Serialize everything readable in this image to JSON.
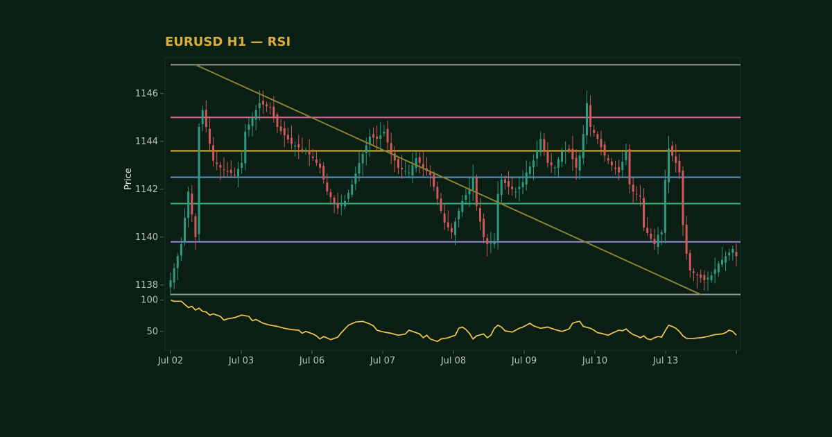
{
  "chart_data": [
    {
      "type": "candlestick",
      "title": "EURUSD H1 — RSI",
      "ylabel": "Price",
      "ylim": [
        1137.5,
        1147.5
      ],
      "y_ticks": [
        1138,
        1140,
        1142,
        1144,
        1146
      ],
      "x_ticks": [
        "Jul 02",
        "Jul 03",
        "Jul 06",
        "Jul 07",
        "Jul 08",
        "Jul 09",
        "Jul 10",
        "Jul 13"
      ],
      "candle_count": 160,
      "anchors": [
        [
          0,
          1138.2
        ],
        [
          3,
          1139.7
        ],
        [
          5,
          1141.9
        ],
        [
          7,
          1140.0
        ],
        [
          8,
          1144.6
        ],
        [
          9,
          1145.3
        ],
        [
          12,
          1143.2
        ],
        [
          14,
          1142.9
        ],
        [
          18,
          1142.6
        ],
        [
          20,
          1143.1
        ],
        [
          21,
          1144.4
        ],
        [
          25,
          1145.6
        ],
        [
          28,
          1145.4
        ],
        [
          30,
          1144.6
        ],
        [
          34,
          1143.9
        ],
        [
          38,
          1143.6
        ],
        [
          40,
          1143.3
        ],
        [
          42,
          1142.9
        ],
        [
          44,
          1141.9
        ],
        [
          47,
          1141.2
        ],
        [
          49,
          1141.5
        ],
        [
          51,
          1142.2
        ],
        [
          53,
          1143.1
        ],
        [
          56,
          1144.2
        ],
        [
          58,
          1144.1
        ],
        [
          60,
          1144.4
        ],
        [
          62,
          1143.5
        ],
        [
          64,
          1142.9
        ],
        [
          67,
          1142.7
        ],
        [
          69,
          1143.3
        ],
        [
          71,
          1142.9
        ],
        [
          73,
          1142.6
        ],
        [
          75,
          1141.6
        ],
        [
          77,
          1140.6
        ],
        [
          79,
          1140.2
        ],
        [
          81,
          1141.1
        ],
        [
          82,
          1141.5
        ],
        [
          84,
          1142.0
        ],
        [
          85,
          1142.5
        ],
        [
          86,
          1141.3
        ],
        [
          88,
          1140.0
        ],
        [
          89,
          1139.7
        ],
        [
          91,
          1139.8
        ],
        [
          92,
          1141.8
        ],
        [
          93,
          1142.4
        ],
        [
          95,
          1142.1
        ],
        [
          97,
          1141.9
        ],
        [
          99,
          1142.3
        ],
        [
          100,
          1142.7
        ],
        [
          102,
          1143.2
        ],
        [
          104,
          1144.1
        ],
        [
          106,
          1143.1
        ],
        [
          108,
          1142.9
        ],
        [
          110,
          1143.6
        ],
        [
          112,
          1143.6
        ],
        [
          114,
          1142.9
        ],
        [
          115,
          1143.4
        ],
        [
          116,
          1144.3
        ],
        [
          117,
          1145.6
        ],
        [
          118,
          1144.6
        ],
        [
          120,
          1144.1
        ],
        [
          122,
          1143.4
        ],
        [
          124,
          1143.0
        ],
        [
          126,
          1142.7
        ],
        [
          128,
          1143.6
        ],
        [
          129,
          1142.2
        ],
        [
          130,
          1141.9
        ],
        [
          132,
          1141.7
        ],
        [
          133,
          1140.4
        ],
        [
          136,
          1139.7
        ],
        [
          137,
          1140.1
        ],
        [
          138,
          1140.2
        ],
        [
          139,
          1142.4
        ],
        [
          140,
          1143.7
        ],
        [
          142,
          1143.1
        ],
        [
          143,
          1142.7
        ],
        [
          144,
          1140.5
        ],
        [
          145,
          1139.3
        ],
        [
          146,
          1138.6
        ],
        [
          148,
          1138.4
        ],
        [
          150,
          1138.2
        ],
        [
          152,
          1138.4
        ],
        [
          154,
          1138.9
        ],
        [
          156,
          1139.2
        ],
        [
          158,
          1139.5
        ],
        [
          159,
          1139.2
        ]
      ],
      "horizontal_levels": [
        {
          "value": 1147.2,
          "color": "#8d9a98"
        },
        {
          "value": 1145.0,
          "color": "#d96c99"
        },
        {
          "value": 1143.6,
          "color": "#d9b43a"
        },
        {
          "value": 1142.5,
          "color": "#5b92d6"
        },
        {
          "value": 1141.4,
          "color": "#34b57f"
        },
        {
          "value": 1139.8,
          "color": "#9a8ee0"
        },
        {
          "value": 1137.6,
          "color": "#8d9a98"
        }
      ],
      "trendline": {
        "from": [
          7,
          1147.2
        ],
        "to": [
          149,
          1137.6
        ],
        "color": "#8b8334"
      },
      "colors": {
        "up": "#2f9b83",
        "down": "#d0595b"
      }
    },
    {
      "type": "line",
      "series": [
        {
          "name": "RSI",
          "color": "#f2c94c"
        }
      ],
      "y_ticks": [
        50,
        100
      ],
      "ylim": [
        20,
        105
      ],
      "anchors": [
        [
          0,
          100
        ],
        [
          1,
          98
        ],
        [
          3,
          98
        ],
        [
          4,
          93
        ],
        [
          5,
          88
        ],
        [
          6,
          90
        ],
        [
          7,
          84
        ],
        [
          8,
          87
        ],
        [
          9,
          82
        ],
        [
          10,
          81
        ],
        [
          11,
          76
        ],
        [
          12,
          78
        ],
        [
          14,
          74
        ],
        [
          15,
          68
        ],
        [
          16,
          70
        ],
        [
          18,
          72
        ],
        [
          20,
          76
        ],
        [
          22,
          74
        ],
        [
          23,
          67
        ],
        [
          24,
          69
        ],
        [
          26,
          63
        ],
        [
          28,
          60
        ],
        [
          30,
          58
        ],
        [
          32,
          55
        ],
        [
          34,
          53
        ],
        [
          36,
          52
        ],
        [
          37,
          47
        ],
        [
          38,
          50
        ],
        [
          40,
          46
        ],
        [
          41,
          43
        ],
        [
          42,
          38
        ],
        [
          43,
          42
        ],
        [
          45,
          37
        ],
        [
          47,
          41
        ],
        [
          48,
          48
        ],
        [
          50,
          60
        ],
        [
          52,
          65
        ],
        [
          54,
          66
        ],
        [
          56,
          62
        ],
        [
          57,
          59
        ],
        [
          58,
          52
        ],
        [
          60,
          49
        ],
        [
          62,
          47
        ],
        [
          64,
          44
        ],
        [
          66,
          46
        ],
        [
          67,
          52
        ],
        [
          68,
          50
        ],
        [
          70,
          46
        ],
        [
          71,
          40
        ],
        [
          72,
          44
        ],
        [
          73,
          38
        ],
        [
          75,
          34
        ],
        [
          76,
          38
        ],
        [
          78,
          40
        ],
        [
          80,
          44
        ],
        [
          81,
          55
        ],
        [
          82,
          57
        ],
        [
          83,
          53
        ],
        [
          84,
          47
        ],
        [
          85,
          38
        ],
        [
          86,
          43
        ],
        [
          88,
          46
        ],
        [
          89,
          40
        ],
        [
          90,
          44
        ],
        [
          91,
          55
        ],
        [
          92,
          60
        ],
        [
          93,
          57
        ],
        [
          94,
          51
        ],
        [
          96,
          49
        ],
        [
          98,
          55
        ],
        [
          99,
          57
        ],
        [
          100,
          60
        ],
        [
          101,
          63
        ],
        [
          102,
          59
        ],
        [
          104,
          55
        ],
        [
          106,
          57
        ],
        [
          108,
          53
        ],
        [
          110,
          50
        ],
        [
          112,
          54
        ],
        [
          113,
          63
        ],
        [
          114,
          65
        ],
        [
          115,
          66
        ],
        [
          116,
          58
        ],
        [
          118,
          55
        ],
        [
          119,
          52
        ],
        [
          120,
          48
        ],
        [
          121,
          47
        ],
        [
          123,
          44
        ],
        [
          124,
          47
        ],
        [
          126,
          52
        ],
        [
          127,
          51
        ],
        [
          128,
          54
        ],
        [
          129,
          49
        ],
        [
          130,
          45
        ],
        [
          131,
          43
        ],
        [
          132,
          40
        ],
        [
          133,
          43
        ],
        [
          134,
          38
        ],
        [
          135,
          37
        ],
        [
          136,
          40
        ],
        [
          137,
          42
        ],
        [
          138,
          41
        ],
        [
          139,
          51
        ],
        [
          140,
          60
        ],
        [
          141,
          58
        ],
        [
          142,
          55
        ],
        [
          143,
          50
        ],
        [
          144,
          43
        ],
        [
          145,
          39
        ],
        [
          147,
          39
        ],
        [
          149,
          40
        ],
        [
          151,
          42
        ],
        [
          153,
          45
        ],
        [
          155,
          46
        ],
        [
          156,
          48
        ],
        [
          157,
          52
        ],
        [
          158,
          50
        ],
        [
          159,
          44
        ]
      ]
    }
  ]
}
